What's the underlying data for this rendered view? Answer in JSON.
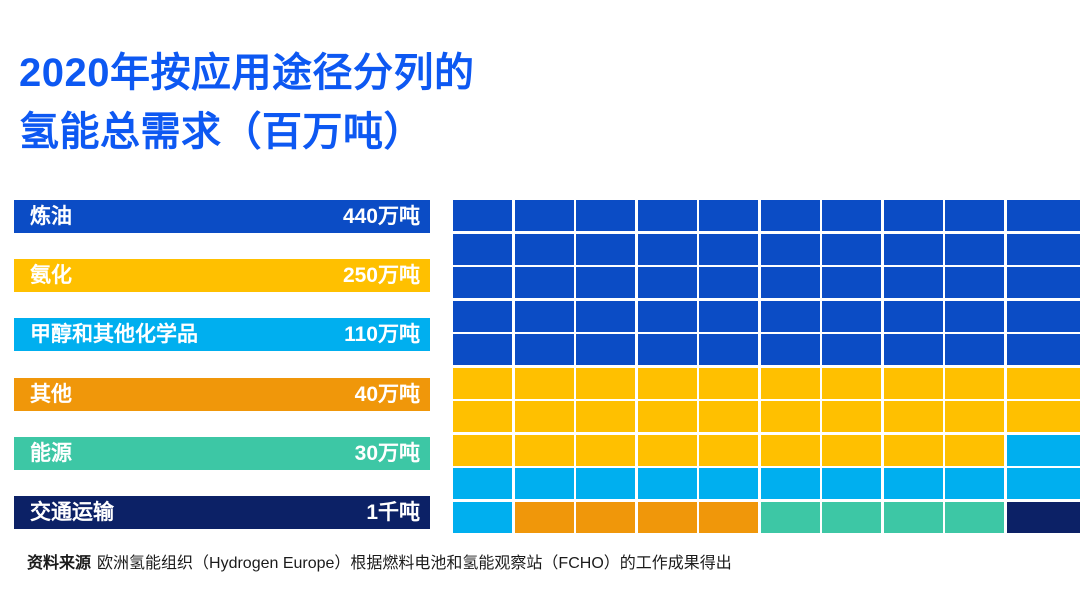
{
  "title": {
    "line1": "2020年按应用途径分列的",
    "line2": "氢能总需求（百万吨）"
  },
  "colors": {
    "blue": "#0B4CC5",
    "yellow": "#FFC000",
    "cyan": "#00AFEF",
    "orange": "#F0970A",
    "teal": "#3DC7A5",
    "navy": "#0C2166",
    "title_blue": "#0D58F2"
  },
  "legend": [
    {
      "key": "refining",
      "label": "炼油",
      "value": "440万吨",
      "color": "blue"
    },
    {
      "key": "ammonia",
      "label": "氨化",
      "value": "250万吨",
      "color": "yellow"
    },
    {
      "key": "methanol-chemicals",
      "label": "甲醇和其他化学品",
      "value": "110万吨",
      "color": "cyan"
    },
    {
      "key": "other",
      "label": "其他",
      "value": "40万吨",
      "color": "orange"
    },
    {
      "key": "energy",
      "label": "能源",
      "value": "30万吨",
      "color": "teal"
    },
    {
      "key": "transport",
      "label": "交通运输",
      "value": "1千吨",
      "color": "navy"
    }
  ],
  "source": {
    "label": "资料来源",
    "text": "欧洲氢能组织（Hydrogen Europe）根据燃料电池和氢能观察站（FCHO）的工作成果得出"
  },
  "chart_data": {
    "type": "heatmap",
    "subtype": "waffle-grid",
    "title": "2020年按应用途径分列的氢能总需求（百万吨）",
    "unit": "百万吨",
    "categories": [
      "炼油",
      "氨化",
      "甲醇和其他化学品",
      "其他",
      "能源",
      "交通运输"
    ],
    "values": [
      4.4,
      2.5,
      1.1,
      0.4,
      0.3,
      0.001
    ],
    "value_labels": [
      "440万吨",
      "250万吨",
      "110万吨",
      "40万吨",
      "30万吨",
      "1千吨"
    ],
    "grid": {
      "rows": 10,
      "cols": 10,
      "cell_counts": {
        "blue": 50,
        "yellow": 29,
        "cyan": 12,
        "orange": 4,
        "teal": 4,
        "navy": 1
      }
    },
    "cells": [
      [
        "blue",
        "blue",
        "blue",
        "blue",
        "blue",
        "blue",
        "blue",
        "blue",
        "blue",
        "blue"
      ],
      [
        "blue",
        "blue",
        "blue",
        "blue",
        "blue",
        "blue",
        "blue",
        "blue",
        "blue",
        "blue"
      ],
      [
        "blue",
        "blue",
        "blue",
        "blue",
        "blue",
        "blue",
        "blue",
        "blue",
        "blue",
        "blue"
      ],
      [
        "blue",
        "blue",
        "blue",
        "blue",
        "blue",
        "blue",
        "blue",
        "blue",
        "blue",
        "blue"
      ],
      [
        "blue",
        "blue",
        "blue",
        "blue",
        "blue",
        "blue",
        "blue",
        "blue",
        "blue",
        "blue"
      ],
      [
        "yellow",
        "yellow",
        "yellow",
        "yellow",
        "yellow",
        "yellow",
        "yellow",
        "yellow",
        "yellow",
        "yellow"
      ],
      [
        "yellow",
        "yellow",
        "yellow",
        "yellow",
        "yellow",
        "yellow",
        "yellow",
        "yellow",
        "yellow",
        "yellow"
      ],
      [
        "yellow",
        "yellow",
        "yellow",
        "yellow",
        "yellow",
        "yellow",
        "yellow",
        "yellow",
        "yellow",
        "cyan"
      ],
      [
        "cyan",
        "cyan",
        "cyan",
        "cyan",
        "cyan",
        "cyan",
        "cyan",
        "cyan",
        "cyan",
        "cyan"
      ],
      [
        "cyan",
        "orange",
        "orange",
        "orange",
        "orange",
        "teal",
        "teal",
        "teal",
        "teal",
        "navy"
      ]
    ],
    "legend_position": "left",
    "grid_lines": "white-gaps"
  }
}
